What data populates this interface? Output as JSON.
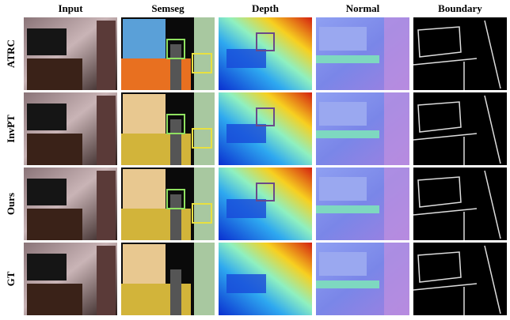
{
  "header": {
    "columns": [
      "Input",
      "Semseg",
      "Depth",
      "Normal",
      "Boundary"
    ]
  },
  "rows": [
    {
      "label": "ATRC"
    },
    {
      "label": "InvPT"
    },
    {
      "label": "Ours"
    },
    {
      "label": "GT"
    }
  ]
}
